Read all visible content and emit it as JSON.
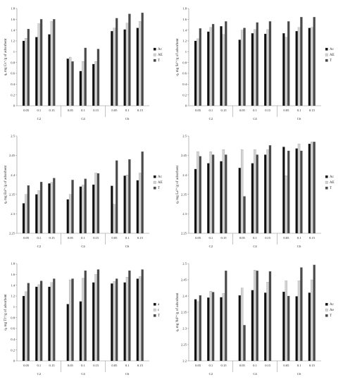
{
  "colors": {
    "Ac": "#111111",
    "AE": "#d4d4d4",
    "T": "#4a4a4a",
    "axis": "#888888"
  },
  "chart_data": [
    {
      "type": "bar",
      "ylabel": "qₑ mg Cs⁺/g of adsorbent",
      "ylim": [
        0,
        1.8
      ],
      "yticks": [
        "0",
        "0.2",
        "0.4",
        "0.6",
        "0.8",
        "1",
        "1.2",
        "1.4",
        "1.6",
        "1.8"
      ],
      "groups": [
        "C2",
        "C4",
        "C6"
      ],
      "subcategories": [
        "0.05",
        "0.1",
        "0.15"
      ],
      "legend": [
        "Ac",
        "AE",
        "T"
      ],
      "series": [
        {
          "name": "Ac",
          "values": [
            1.2,
            1.27,
            1.32,
            0.87,
            0.64,
            0.77,
            1.38,
            1.41,
            1.44
          ]
        },
        {
          "name": "AE",
          "values": [
            1.25,
            1.52,
            1.56,
            0.9,
            0.82,
            0.82,
            1.44,
            1.53,
            1.56
          ]
        },
        {
          "name": "T",
          "values": [
            1.42,
            1.6,
            1.6,
            0.82,
            1.07,
            1.05,
            1.62,
            1.7,
            1.72
          ]
        }
      ]
    },
    {
      "type": "bar",
      "ylabel": "qₑ mg Sr²⁺/g of adsorbent",
      "ylim": [
        0,
        1.8
      ],
      "yticks": [
        "0",
        "0.2",
        "0.4",
        "0.6",
        "0.8",
        "1",
        "1.2",
        "1.4",
        "1.6",
        "1.8"
      ],
      "groups": [
        "C2",
        "C4",
        "C6"
      ],
      "subcategories": [
        "0.05",
        "0.1",
        "0.15"
      ],
      "legend": [
        "Ac",
        "AE",
        "T"
      ],
      "series": [
        {
          "name": "Ac",
          "values": [
            1.2,
            1.37,
            1.47,
            1.22,
            1.34,
            1.33,
            1.34,
            1.38,
            1.44
          ]
        },
        {
          "name": "AE",
          "values": [
            1.24,
            1.45,
            1.32,
            1.4,
            1.41,
            1.41,
            1.27,
            1.45,
            1.45
          ]
        },
        {
          "name": "T",
          "values": [
            1.43,
            1.51,
            1.56,
            1.44,
            1.54,
            1.56,
            1.56,
            1.64,
            1.64
          ]
        }
      ]
    },
    {
      "type": "bar",
      "ylabel": "qₑ mg Eu³⁺/g of adsorbent",
      "ylim": [
        2.25,
        2.5
      ],
      "yticks": [
        "2.25",
        "2.3",
        "2.35",
        "2.4",
        "2.45",
        "2.5"
      ],
      "groups": [
        "C2",
        "C4",
        "C6"
      ],
      "subcategories": [
        "0.05",
        "0.1",
        "0.15"
      ],
      "legend": [
        "Ac",
        "AE",
        "T"
      ],
      "series": [
        {
          "name": "Ac",
          "values": [
            2.327,
            2.35,
            2.378,
            2.337,
            2.37,
            2.375,
            2.372,
            2.398,
            2.386
          ]
        },
        {
          "name": "AE",
          "values": [
            2.35,
            2.36,
            2.381,
            2.35,
            2.374,
            2.405,
            2.325,
            2.4,
            2.405
          ]
        },
        {
          "name": "T",
          "values": [
            2.373,
            2.382,
            2.392,
            2.387,
            2.39,
            2.404,
            2.437,
            2.44,
            2.46
          ]
        }
      ]
    },
    {
      "type": "bar",
      "ylabel": "qₑ mg La³⁺/g of adsorbent",
      "ylim": [
        2.25,
        2.5
      ],
      "yticks": [
        "2.25",
        "2.3",
        "2.35",
        "2.4",
        "2.45",
        "2.5"
      ],
      "groups": [
        "C2",
        "C4",
        "C6"
      ],
      "subcategories": [
        "0.05",
        "0.1",
        "0.15"
      ],
      "legend": [
        "Ac",
        "AE",
        "T"
      ],
      "series": [
        {
          "name": "Ac",
          "values": [
            2.415,
            2.43,
            2.435,
            2.418,
            2.43,
            2.452,
            2.472,
            2.468,
            2.48
          ]
        },
        {
          "name": "AE",
          "values": [
            2.46,
            2.46,
            2.465,
            2.465,
            2.465,
            2.465,
            2.398,
            2.48,
            2.485
          ]
        },
        {
          "name": "T",
          "values": [
            2.448,
            2.452,
            2.452,
            2.345,
            2.452,
            2.476,
            2.462,
            2.462,
            2.485
          ]
        }
      ]
    },
    {
      "type": "bar",
      "ylabel": "qₑ mg Tl⁺/g of adsorbent",
      "ylim": [
        0,
        1.8
      ],
      "yticks": [
        "0",
        "0.2",
        "0.4",
        "0.6",
        "0.8",
        "1",
        "1.2",
        "1.4",
        "1.6",
        "1.8"
      ],
      "groups": [
        "C2",
        "C4",
        "C6"
      ],
      "subcategories": [
        "0.05",
        "0.1",
        "0.15"
      ],
      "legend": [
        "a",
        "c",
        "T"
      ],
      "series": [
        {
          "name": "a",
          "values": [
            1.2,
            1.37,
            1.37,
            1.05,
            1.1,
            1.45,
            1.43,
            1.45,
            1.52
          ]
        },
        {
          "name": "c",
          "values": [
            1.28,
            1.41,
            1.45,
            1.5,
            1.53,
            1.6,
            1.47,
            1.55,
            1.56
          ]
        },
        {
          "name": "T",
          "values": [
            1.44,
            1.48,
            1.52,
            1.52,
            1.67,
            1.69,
            1.52,
            1.67,
            1.69
          ]
        }
      ]
    },
    {
      "type": "bar",
      "ylabel": "qₑ mg Nd³⁺/g of adsorbent",
      "ylim": [
        2.2,
        2.5
      ],
      "yticks": [
        "2.2",
        "2.25",
        "2.3",
        "2.35",
        "2.4",
        "2.45",
        "2.5"
      ],
      "groups": [
        "C2",
        "C4",
        "C6"
      ],
      "subcategories": [
        "0.05",
        "0.1",
        "0.15"
      ],
      "legend": [
        "Ac",
        "Ae",
        "T"
      ],
      "series": [
        {
          "name": "Ac",
          "values": [
            2.39,
            2.395,
            2.396,
            2.402,
            2.418,
            2.41,
            2.413,
            2.399,
            2.41
          ]
        },
        {
          "name": "Ae",
          "values": [
            2.383,
            2.415,
            2.408,
            2.425,
            2.48,
            2.443,
            2.447,
            2.447,
            2.45
          ]
        },
        {
          "name": "T",
          "values": [
            2.402,
            2.412,
            2.478,
            2.31,
            2.478,
            2.476,
            2.4,
            2.488,
            2.496
          ]
        }
      ]
    }
  ]
}
